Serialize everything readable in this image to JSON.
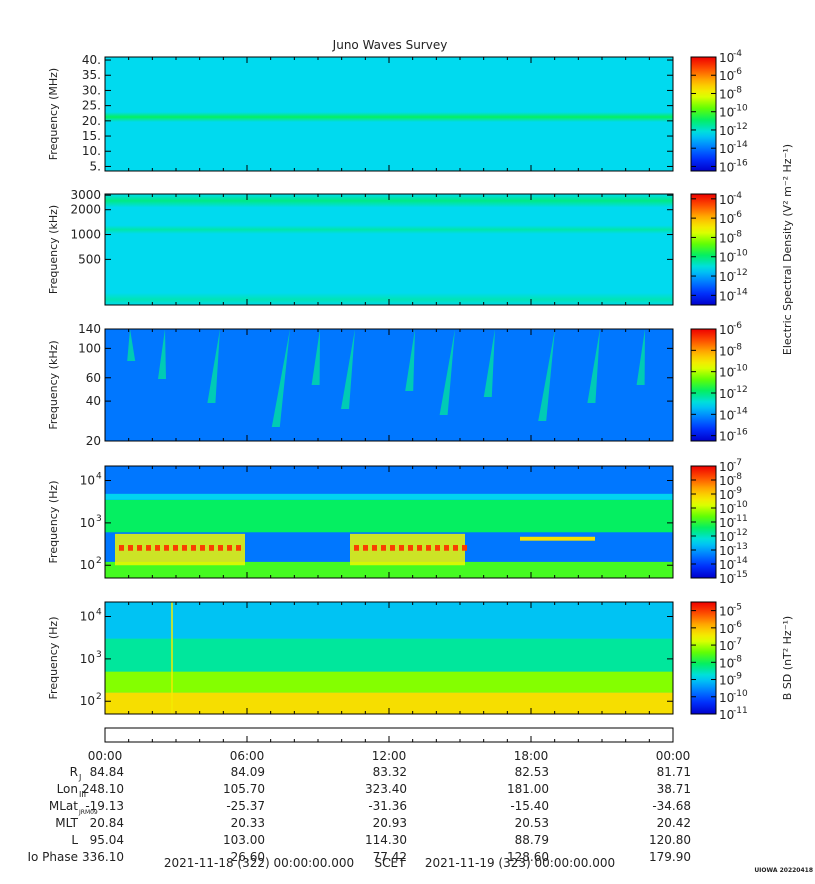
{
  "title": "Juno Waves Survey",
  "footer": "UIOWA 20220418",
  "colors": {
    "background": "#ffffff",
    "frame": "#000000",
    "text": "#222222",
    "colormap": [
      "#0000cc",
      "#0033ff",
      "#0088ff",
      "#00ddee",
      "#00ee66",
      "#66ff00",
      "#eeff00",
      "#ffbb00",
      "#ff5500",
      "#ee0000"
    ]
  },
  "chart_data": [
    {
      "type": "heatmap",
      "ylabel": "Frequency (MHz)",
      "yscale": "linear",
      "ylim": [
        3.5,
        41
      ],
      "yticks": [
        {
          "v": 5,
          "label": "5."
        },
        {
          "v": 10,
          "label": "10."
        },
        {
          "v": 15,
          "label": "15."
        },
        {
          "v": 20,
          "label": "20."
        },
        {
          "v": 25,
          "label": "25."
        },
        {
          "v": 30,
          "label": "30."
        },
        {
          "v": 35,
          "label": "35."
        },
        {
          "v": 40,
          "label": "40."
        }
      ],
      "colorbar": {
        "min_exp": -16.5,
        "max_exp": -4,
        "labels": [
          -4,
          -6,
          -8,
          -10,
          -12,
          -14,
          -16
        ]
      },
      "shared_colorbar_label": "",
      "values_description_bands": [
        {
          "from": 3.5,
          "to": 41,
          "level": 0.33
        },
        {
          "from": 20,
          "to": 22.5,
          "level": 0.45
        }
      ]
    },
    {
      "type": "heatmap",
      "ylabel": "Frequency (kHz)",
      "yscale": "log",
      "ylim": [
        140,
        3100
      ],
      "yticks": [
        {
          "v": 500,
          "label": "500"
        },
        {
          "v": 1000,
          "label": "1000"
        },
        {
          "v": 2000,
          "label": "2000"
        },
        {
          "v": 3000,
          "label": "3000"
        }
      ],
      "colorbar": {
        "min_exp": -15,
        "max_exp": -3.5,
        "labels": [
          -4,
          -6,
          -8,
          -10,
          -12,
          -14
        ]
      },
      "colorbar_label": "Electric Spectral Density (V² m⁻² Hz⁻¹)",
      "values_description_bands": [
        {
          "from": 140,
          "to": 3100,
          "level": 0.33
        },
        {
          "from": 2200,
          "to": 3000,
          "level": 0.42
        },
        {
          "from": 1050,
          "to": 1250,
          "level": 0.39
        },
        {
          "from": 140,
          "to": 190,
          "level": 0.38
        }
      ]
    },
    {
      "type": "heatmap",
      "ylabel": "Frequency (kHz)",
      "yscale": "log",
      "ylim": [
        20,
        140
      ],
      "yticks": [
        {
          "v": 20,
          "label": "20"
        },
        {
          "v": 40,
          "label": "40"
        },
        {
          "v": 60,
          "label": "60"
        },
        {
          "v": 100,
          "label": "100"
        },
        {
          "v": 140,
          "label": "140"
        }
      ],
      "colorbar": {
        "min_exp": -16.5,
        "max_exp": -6,
        "labels": [
          -6,
          -8,
          -10,
          -12,
          -14,
          -16
        ]
      },
      "values_description_bands": [
        {
          "from": 20,
          "to": 140,
          "level": 0.2
        }
      ]
    },
    {
      "type": "heatmap",
      "ylabel": "Frequency (Hz)",
      "yscale": "log",
      "ylim": [
        50,
        22000
      ],
      "yticks": [
        {
          "v": 100,
          "label": "10",
          "sup": "2"
        },
        {
          "v": 1000,
          "label": "10",
          "sup": "3"
        },
        {
          "v": 10000,
          "label": "10",
          "sup": "4"
        }
      ],
      "colorbar": {
        "min_exp": -15,
        "max_exp": -7,
        "labels": [
          -7,
          -8,
          -9,
          -10,
          -11,
          -12,
          -13,
          -14,
          -15
        ]
      },
      "values_description_bands": [
        {
          "from": 50,
          "to": 22000,
          "level": 0.2
        }
      ]
    },
    {
      "type": "heatmap",
      "ylabel": "Frequency (Hz)",
      "yscale": "log",
      "ylim": [
        50,
        22000
      ],
      "yticks": [
        {
          "v": 100,
          "label": "10",
          "sup": "2"
        },
        {
          "v": 1000,
          "label": "10",
          "sup": "3"
        },
        {
          "v": 10000,
          "label": "10",
          "sup": "4"
        }
      ],
      "colorbar": {
        "min_exp": -11,
        "max_exp": -4.5,
        "labels": [
          -5,
          -6,
          -7,
          -8,
          -9,
          -10,
          -11
        ]
      },
      "colorbar_label": "B SD (nT² Hz⁻¹)",
      "values_description_bands": [
        {
          "from": 50,
          "to": 22000,
          "level": 0.3
        }
      ]
    }
  ],
  "time_axis": {
    "ticks": [
      "00:00",
      "06:00",
      "12:00",
      "18:00",
      "00:00"
    ],
    "hours": [
      0,
      6,
      12,
      18,
      24
    ]
  },
  "ephemeris": [
    {
      "label": "R",
      "sub": "J",
      "values": [
        "84.84",
        "84.09",
        "83.32",
        "82.53",
        "81.71"
      ]
    },
    {
      "label": "Lon",
      "sub": "III",
      "values": [
        "248.10",
        "105.70",
        "323.40",
        "181.00",
        "38.71"
      ]
    },
    {
      "label": "MLat",
      "sub": "JRM09",
      "values": [
        "-19.13",
        "-25.37",
        "-31.36",
        "-15.40",
        "-34.68"
      ]
    },
    {
      "label": "MLT",
      "sub": "",
      "values": [
        "20.84",
        "20.33",
        "20.93",
        "20.53",
        "20.42"
      ]
    },
    {
      "label": "L",
      "sub": "",
      "values": [
        "95.04",
        "103.00",
        "114.30",
        "88.79",
        "120.80"
      ]
    },
    {
      "label": "Io Phase",
      "sub": "",
      "values": [
        "336.10",
        "26.60",
        "77.42",
        "128.60",
        "179.90"
      ]
    }
  ],
  "scet": {
    "start": "2021-11-18 (322) 00:00:00.000",
    "label": "SCET",
    "end": "2021-11-19 (323) 00:00:00.000"
  }
}
